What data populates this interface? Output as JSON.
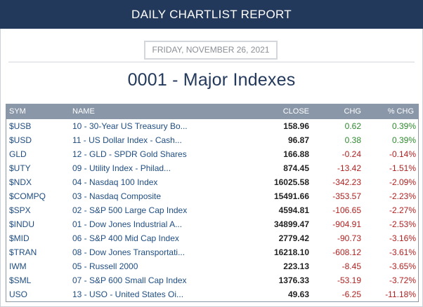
{
  "report": {
    "header": "DAILY CHARTLIST REPORT",
    "date": "FRIDAY, NOVEMBER 26, 2021",
    "title": "0001 - Major Indexes"
  },
  "colors": {
    "header_bg": "#23395b",
    "title": "#23395b",
    "table_header_bg": "#8a97a8",
    "link": "#1f4d82",
    "positive": "#2e8b2e",
    "negative": "#b02020"
  },
  "table": {
    "columns": {
      "sym": "SYM",
      "name": "NAME",
      "close": "CLOSE",
      "chg": "CHG",
      "pct": "% CHG"
    },
    "rows": [
      {
        "sym": "$USB",
        "name": "10 - 30-Year US Treasury Bo...",
        "close": "158.96",
        "chg": "0.62",
        "pct": "0.39%",
        "dir": "pos"
      },
      {
        "sym": "$USD",
        "name": "11 - US Dollar Index - Cash...",
        "close": "96.87",
        "chg": "0.38",
        "pct": "0.39%",
        "dir": "pos"
      },
      {
        "sym": "GLD",
        "name": "12 - GLD - SPDR Gold Shares",
        "close": "166.88",
        "chg": "-0.24",
        "pct": "-0.14%",
        "dir": "neg"
      },
      {
        "sym": "$UTY",
        "name": "09 - Utility Index - Philad...",
        "close": "874.45",
        "chg": "-13.42",
        "pct": "-1.51%",
        "dir": "neg"
      },
      {
        "sym": "$NDX",
        "name": "04 - Nasdaq 100 Index",
        "close": "16025.58",
        "chg": "-342.23",
        "pct": "-2.09%",
        "dir": "neg"
      },
      {
        "sym": "$COMPQ",
        "name": "03 - Nasdaq Composite",
        "close": "15491.66",
        "chg": "-353.57",
        "pct": "-2.23%",
        "dir": "neg"
      },
      {
        "sym": "$SPX",
        "name": "02 - S&P 500 Large Cap Index",
        "close": "4594.81",
        "chg": "-106.65",
        "pct": "-2.27%",
        "dir": "neg"
      },
      {
        "sym": "$INDU",
        "name": "01 - Dow Jones Industrial A...",
        "close": "34899.47",
        "chg": "-904.91",
        "pct": "-2.53%",
        "dir": "neg"
      },
      {
        "sym": "$MID",
        "name": "06 - S&P 400 Mid Cap Index",
        "close": "2779.42",
        "chg": "-90.73",
        "pct": "-3.16%",
        "dir": "neg"
      },
      {
        "sym": "$TRAN",
        "name": "08 - Dow Jones Transportati...",
        "close": "16218.10",
        "chg": "-608.12",
        "pct": "-3.61%",
        "dir": "neg"
      },
      {
        "sym": "IWM",
        "name": "05 - Russell 2000",
        "close": "223.13",
        "chg": "-8.45",
        "pct": "-3.65%",
        "dir": "neg"
      },
      {
        "sym": "$SML",
        "name": "07 - S&P 600 Small Cap Index",
        "close": "1376.33",
        "chg": "-53.19",
        "pct": "-3.72%",
        "dir": "neg"
      },
      {
        "sym": "USO",
        "name": "13 - USO - United States Oi...",
        "close": "49.63",
        "chg": "-6.25",
        "pct": "-11.18%",
        "dir": "neg"
      }
    ]
  }
}
